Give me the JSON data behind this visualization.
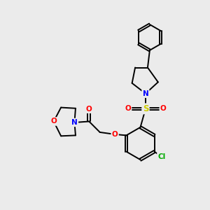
{
  "bg_color": "#ebebeb",
  "bond_color": "#000000",
  "bond_width": 1.4,
  "atom_colors": {
    "N": "#0000ff",
    "O": "#ff0000",
    "S": "#cccc00",
    "Cl": "#00aa00",
    "C": "#000000"
  },
  "font_size": 7.5,
  "fig_size": [
    3.0,
    3.0
  ],
  "dpi": 100
}
